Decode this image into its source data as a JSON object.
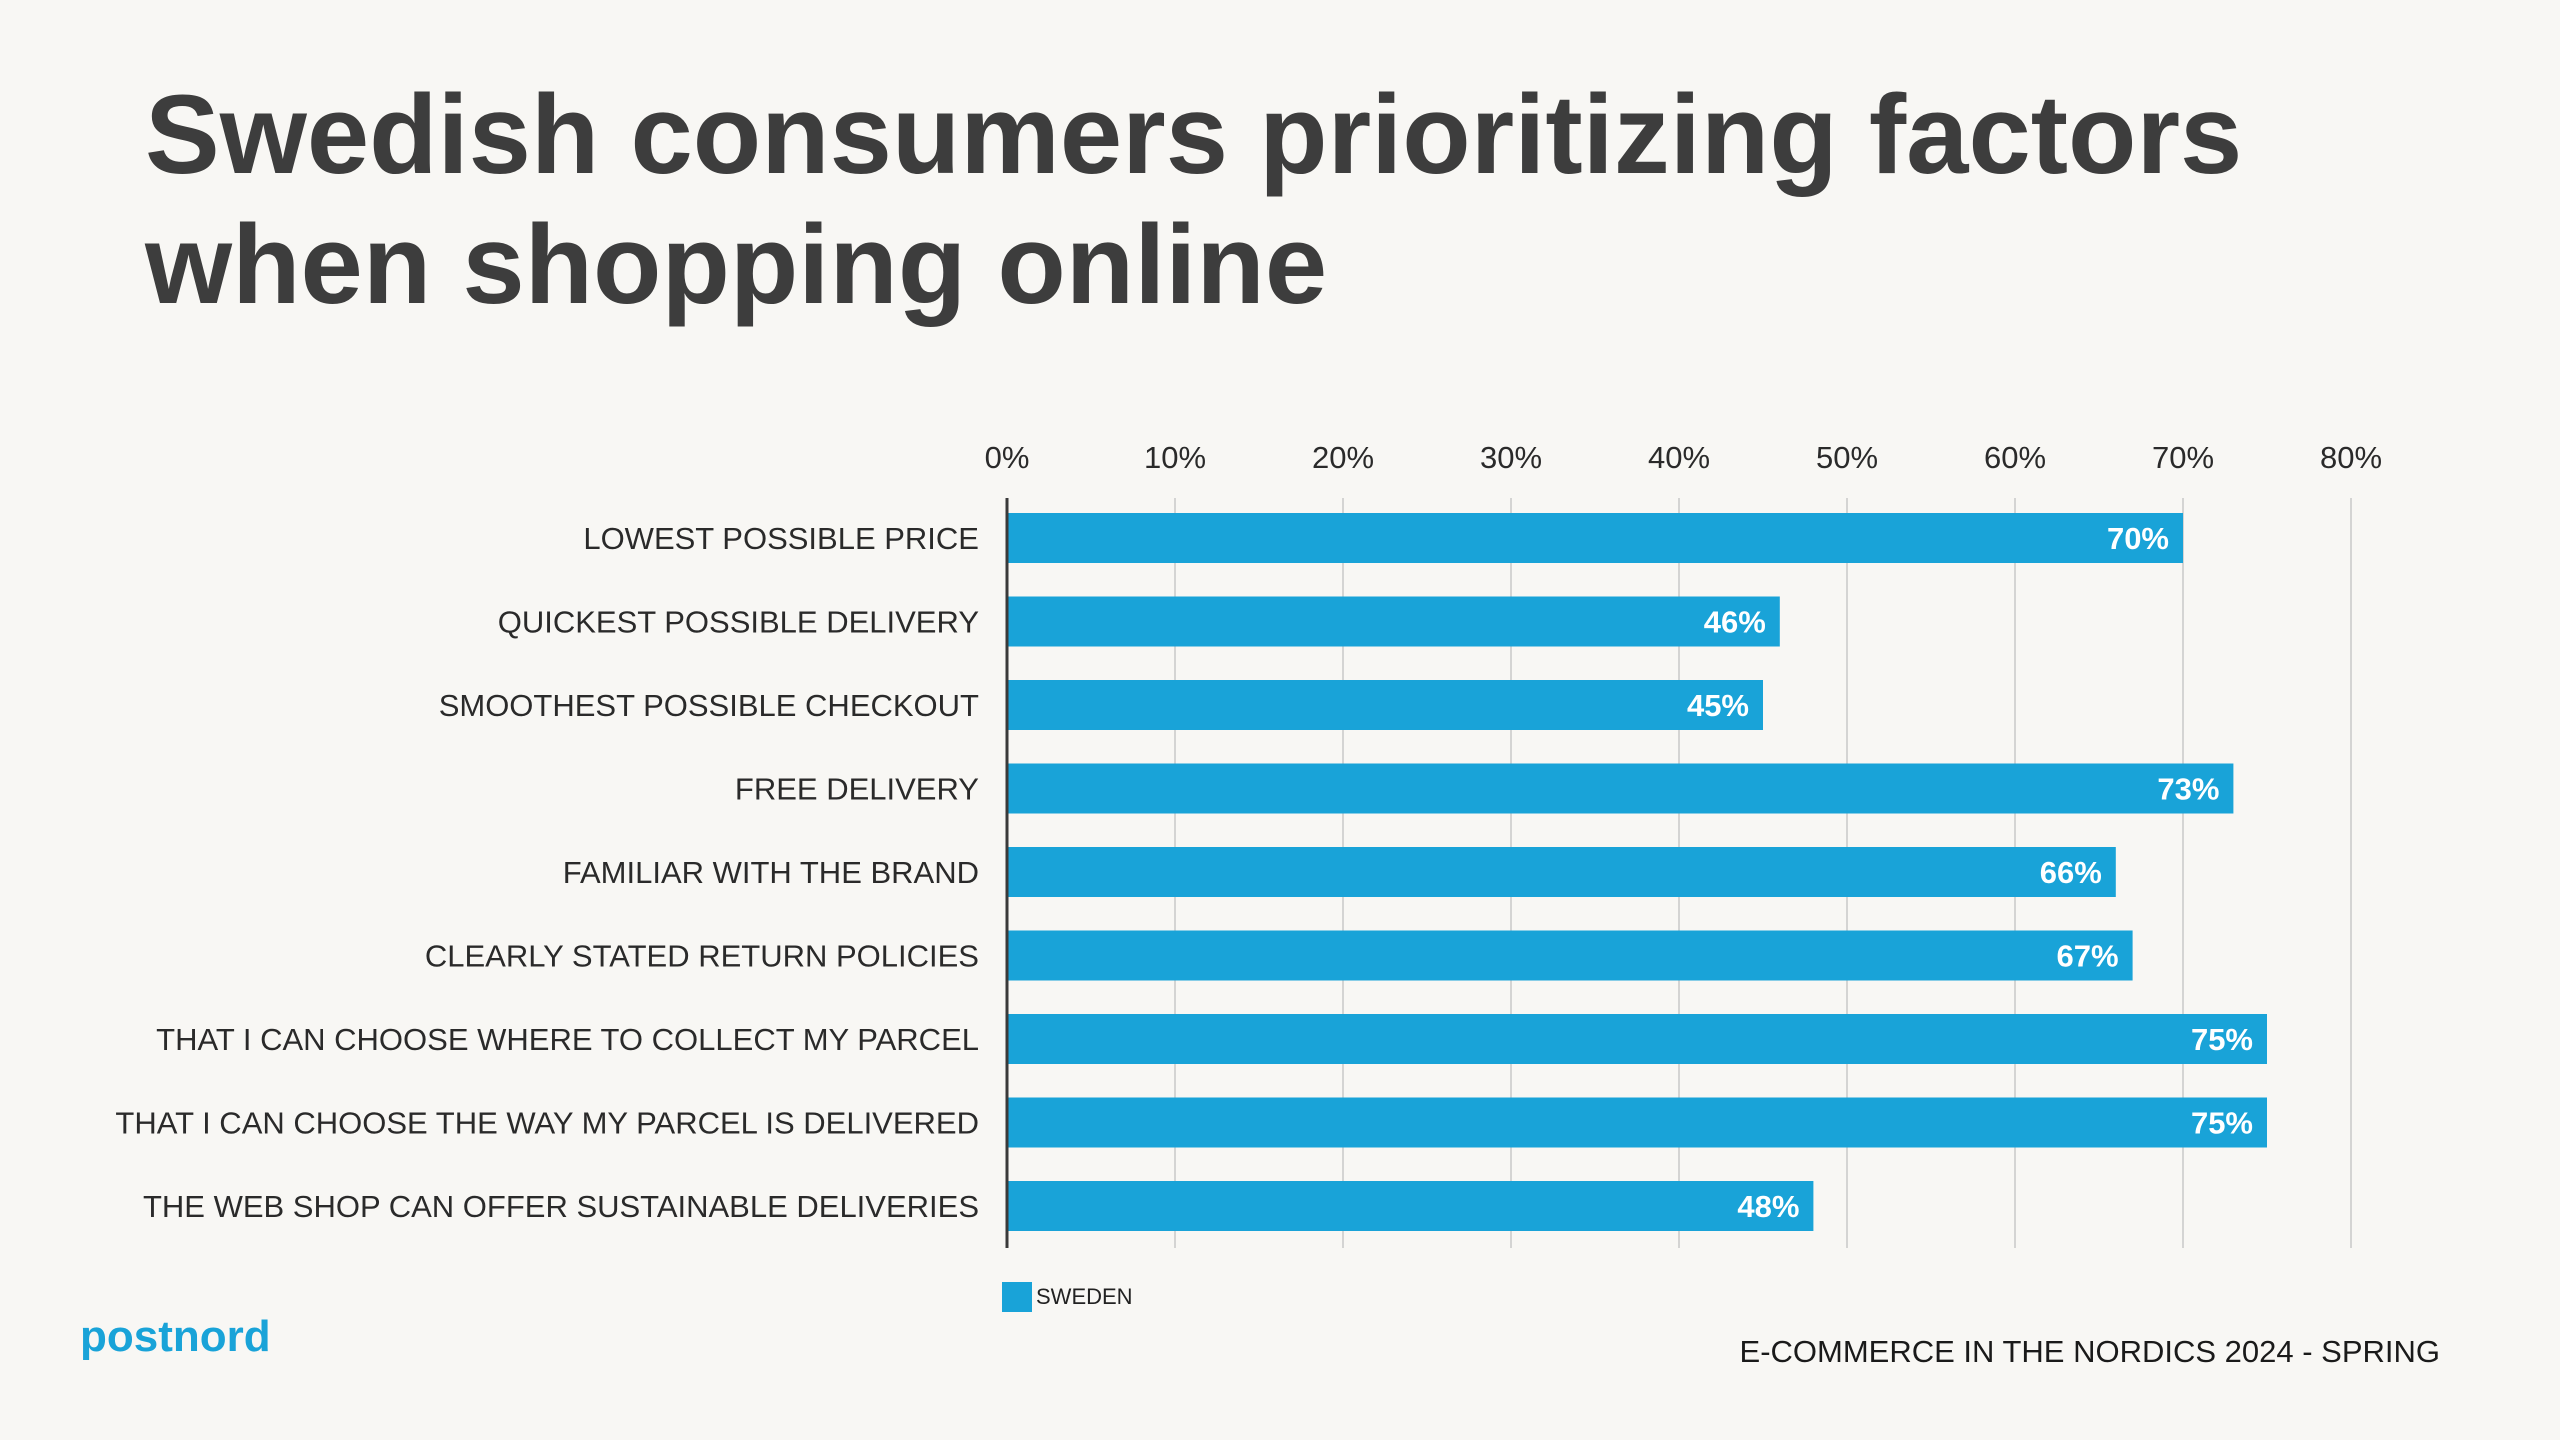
{
  "title": "Swedish consumers prioritizing factors when shopping online",
  "chart_data": {
    "type": "bar",
    "orientation": "horizontal",
    "categories": [
      "LOWEST POSSIBLE PRICE",
      "QUICKEST POSSIBLE DELIVERY",
      "SMOOTHEST POSSIBLE CHECKOUT",
      "FREE DELIVERY",
      "FAMILIAR WITH THE BRAND",
      "CLEARLY STATED RETURN POLICIES",
      "THAT I CAN CHOOSE WHERE TO COLLECT MY PARCEL",
      "THAT I CAN CHOOSE THE WAY MY PARCEL IS DELIVERED",
      "THE WEB SHOP CAN OFFER SUSTAINABLE DELIVERIES"
    ],
    "series": [
      {
        "name": "SWEDEN",
        "values": [
          70,
          46,
          45,
          73,
          66,
          67,
          75,
          75,
          48
        ],
        "value_labels": [
          "70%",
          "46%",
          "45%",
          "73%",
          "66%",
          "67%",
          "75%",
          "75%",
          "48%"
        ]
      }
    ],
    "x_ticks": [
      0,
      10,
      20,
      30,
      40,
      50,
      60,
      70,
      80
    ],
    "x_tick_labels": [
      "0%",
      "10%",
      "20%",
      "30%",
      "40%",
      "50%",
      "60%",
      "70%",
      "80%"
    ],
    "xlim": [
      0,
      80
    ],
    "xaxis_position": "top",
    "grid": true,
    "legend": "bottom-left",
    "bar_color": "#19a3d8"
  },
  "legend": {
    "label": "SWEDEN"
  },
  "logo": {
    "text": "postnord"
  },
  "footer": {
    "text": "E-COMMERCE IN THE NORDICS 2024 - SPRING"
  }
}
